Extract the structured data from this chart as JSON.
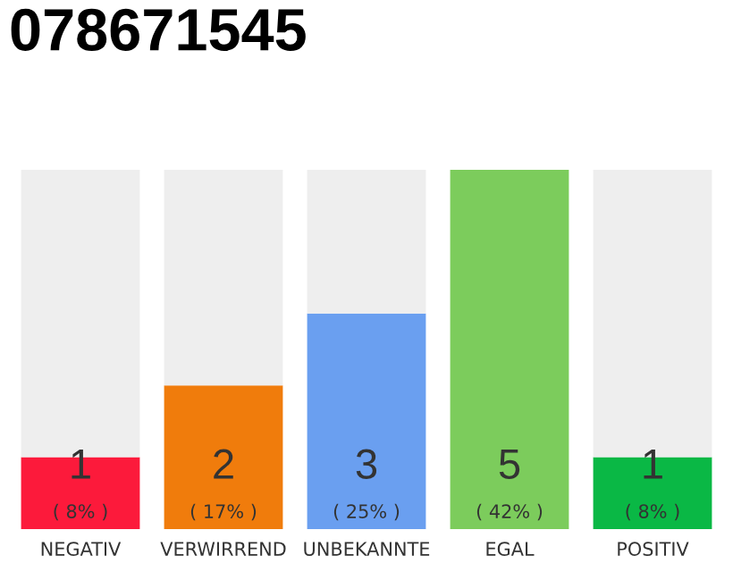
{
  "chart_data": {
    "type": "bar",
    "title": "078671545",
    "stacked": true,
    "categories": [
      "NEGATIV",
      "VERWIRREND",
      "UNBEKANNTE",
      "EGAL",
      "POSITIV"
    ],
    "series": [
      {
        "colors": [
          "#fc1a3b",
          "#f07c0c",
          "#6a9ff0",
          "#7ccc5c",
          "#0ab845"
        ],
        "values": [
          1,
          2,
          3,
          5,
          1
        ],
        "value_labels": [
          "1",
          "2",
          "3",
          "5",
          "1"
        ]
      },
      {
        "color": "#eeeeee",
        "values": [
          4,
          3,
          2,
          0,
          4
        ]
      }
    ],
    "ylim": [
      0,
      5
    ],
    "tick_labels": "x",
    "grid": false,
    "legend": false,
    "annotations": [
      "( 8% )",
      "( 17% )",
      "( 25% )",
      "( 42% )",
      "( 8% )"
    ]
  }
}
